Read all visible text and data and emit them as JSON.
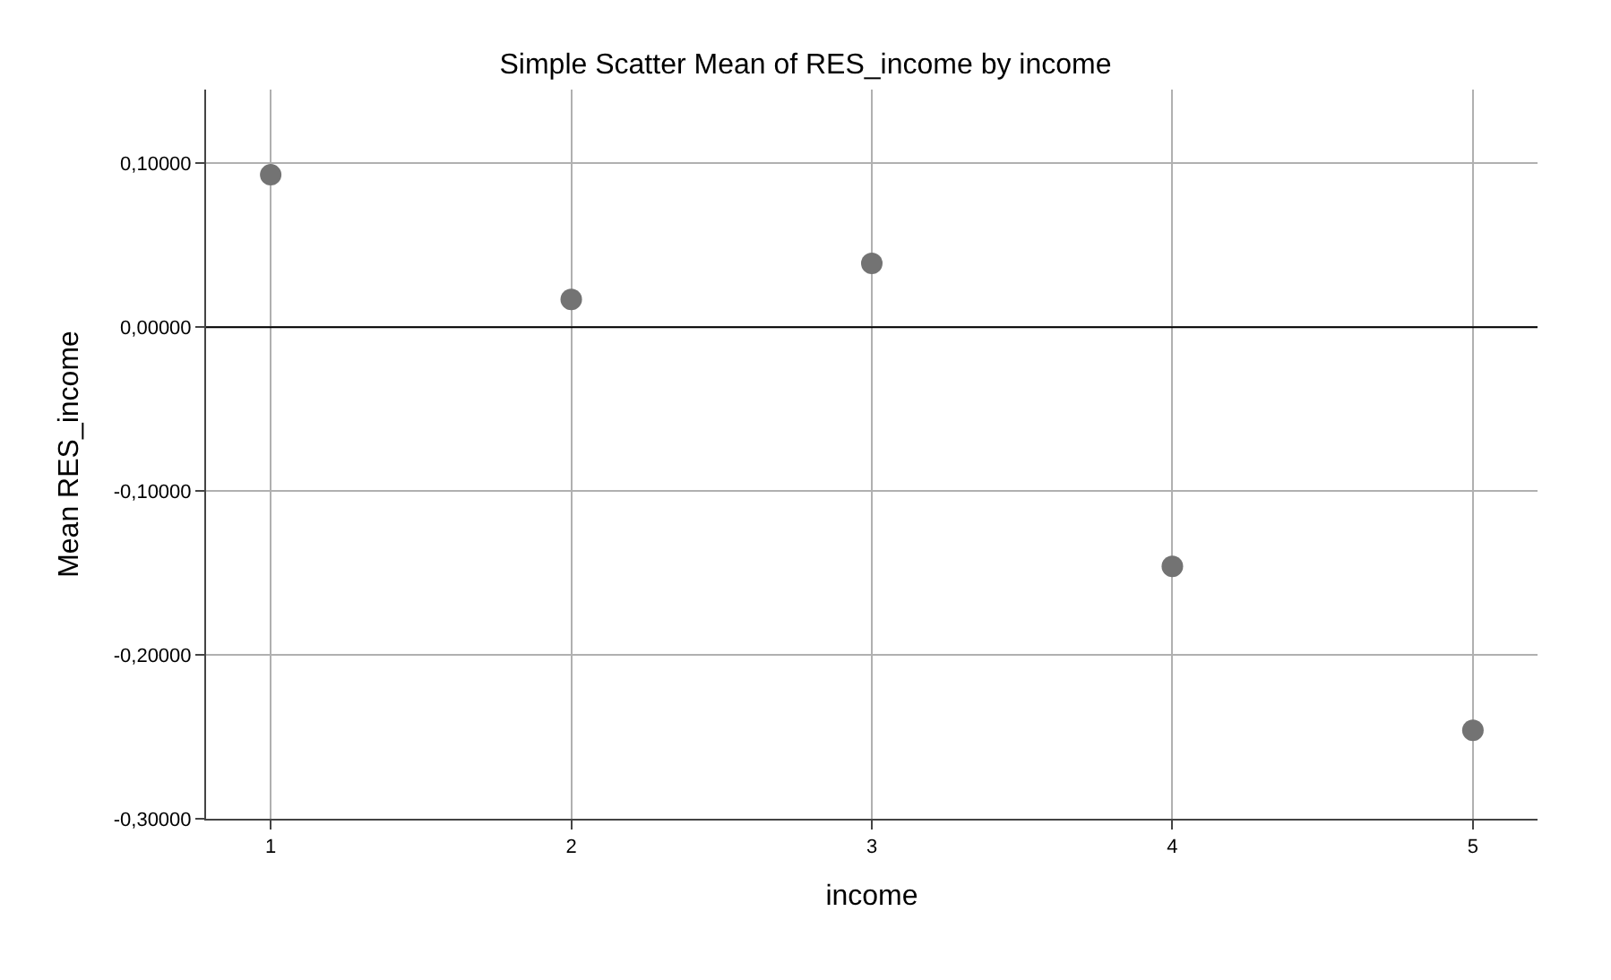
{
  "chart_data": {
    "type": "scatter",
    "title": "Simple Scatter Mean of RES_income by income",
    "xlabel": "income",
    "ylabel": "Mean RES_income",
    "x": [
      1,
      2,
      3,
      4,
      5
    ],
    "series": [
      {
        "color": "#737373",
        "values": [
          0.093,
          0.017,
          0.039,
          -0.146,
          -0.246
        ]
      }
    ],
    "xlim": [
      0.785,
      5.215
    ],
    "xticks": [
      1,
      2,
      3,
      4,
      5
    ],
    "ylim": [
      -0.3,
      0.145
    ],
    "yticks": [
      {
        "value": -0.3,
        "label": "-0,30000"
      },
      {
        "value": -0.2,
        "label": "-0,20000"
      },
      {
        "value": -0.1,
        "label": "-0,10000"
      },
      {
        "value": 0,
        "label": "0,00000"
      },
      {
        "value": 0.1,
        "label": "0,10000"
      }
    ],
    "ref_lines": [
      {
        "axis": "y",
        "value": 0,
        "color": "#000000"
      }
    ],
    "grid": true,
    "marker": "circle"
  }
}
